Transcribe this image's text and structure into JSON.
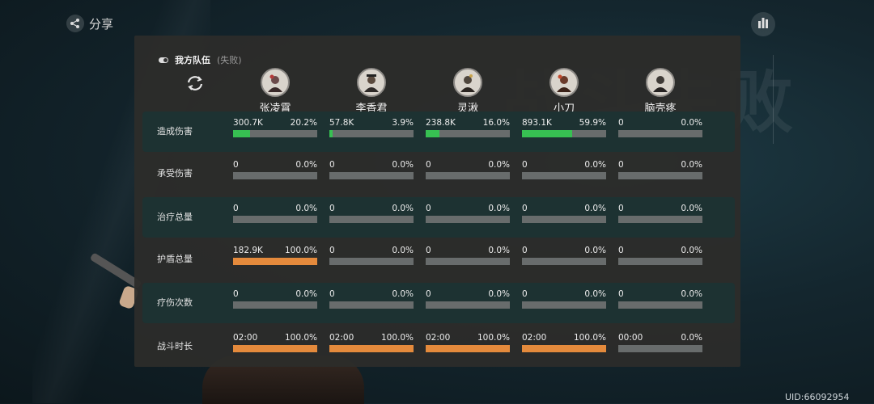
{
  "header": {
    "share_label": "分享",
    "uid": "UID:66092954"
  },
  "background": {
    "title": "战斗失败"
  },
  "team": {
    "name": "我方队伍",
    "status": "(失败)"
  },
  "characters": [
    {
      "name": "张凌霄"
    },
    {
      "name": "李香君"
    },
    {
      "name": "灵湫"
    },
    {
      "name": "小刀"
    },
    {
      "name": "脑壳疼"
    }
  ],
  "colors": {
    "damage": "#37c052",
    "shield": "#e48a3c",
    "duration": "#e48a3c",
    "empty_bar": "#686c6c"
  },
  "rows": [
    {
      "label": "造成伤害",
      "color": "#37c052",
      "cells": [
        {
          "value": "300.7K",
          "percent": "20.2%",
          "fill": 0.202
        },
        {
          "value": "57.8K",
          "percent": "3.9%",
          "fill": 0.039
        },
        {
          "value": "238.8K",
          "percent": "16.0%",
          "fill": 0.16
        },
        {
          "value": "893.1K",
          "percent": "59.9%",
          "fill": 0.599
        },
        {
          "value": "0",
          "percent": "0.0%",
          "fill": 0
        }
      ]
    },
    {
      "label": "承受伤害",
      "color": "#e48a3c",
      "cells": [
        {
          "value": "0",
          "percent": "0.0%",
          "fill": 0
        },
        {
          "value": "0",
          "percent": "0.0%",
          "fill": 0
        },
        {
          "value": "0",
          "percent": "0.0%",
          "fill": 0
        },
        {
          "value": "0",
          "percent": "0.0%",
          "fill": 0
        },
        {
          "value": "0",
          "percent": "0.0%",
          "fill": 0
        }
      ]
    },
    {
      "label": "治疗总量",
      "color": "#37c052",
      "cells": [
        {
          "value": "0",
          "percent": "0.0%",
          "fill": 0
        },
        {
          "value": "0",
          "percent": "0.0%",
          "fill": 0
        },
        {
          "value": "0",
          "percent": "0.0%",
          "fill": 0
        },
        {
          "value": "0",
          "percent": "0.0%",
          "fill": 0
        },
        {
          "value": "0",
          "percent": "0.0%",
          "fill": 0
        }
      ]
    },
    {
      "label": "护盾总量",
      "color": "#e48a3c",
      "cells": [
        {
          "value": "182.9K",
          "percent": "100.0%",
          "fill": 1.0
        },
        {
          "value": "0",
          "percent": "0.0%",
          "fill": 0
        },
        {
          "value": "0",
          "percent": "0.0%",
          "fill": 0
        },
        {
          "value": "0",
          "percent": "0.0%",
          "fill": 0
        },
        {
          "value": "0",
          "percent": "0.0%",
          "fill": 0
        }
      ]
    },
    {
      "label": "疗伤次数",
      "color": "#37c052",
      "cells": [
        {
          "value": "0",
          "percent": "0.0%",
          "fill": 0
        },
        {
          "value": "0",
          "percent": "0.0%",
          "fill": 0
        },
        {
          "value": "0",
          "percent": "0.0%",
          "fill": 0
        },
        {
          "value": "0",
          "percent": "0.0%",
          "fill": 0
        },
        {
          "value": "0",
          "percent": "0.0%",
          "fill": 0
        }
      ]
    },
    {
      "label": "战斗时长",
      "color": "#e48a3c",
      "cells": [
        {
          "value": "02:00",
          "percent": "100.0%",
          "fill": 1.0
        },
        {
          "value": "02:00",
          "percent": "100.0%",
          "fill": 1.0
        },
        {
          "value": "02:00",
          "percent": "100.0%",
          "fill": 1.0
        },
        {
          "value": "02:00",
          "percent": "100.0%",
          "fill": 1.0
        },
        {
          "value": "00:00",
          "percent": "0.0%",
          "fill": 0
        }
      ]
    }
  ]
}
